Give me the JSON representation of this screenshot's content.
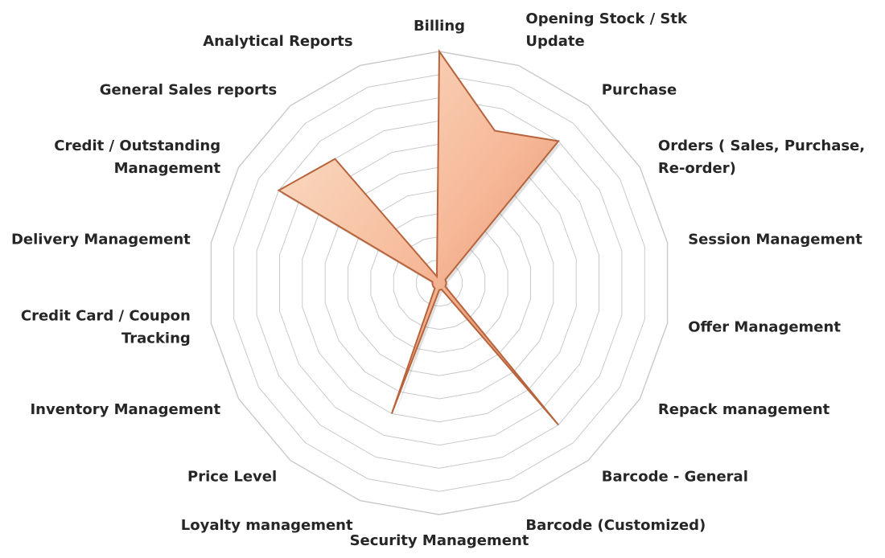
{
  "chart_data": {
    "type": "radar",
    "title": "",
    "categories": [
      "Billing",
      "Opening Stock / Stk Update",
      "Purchase",
      "Orders ( Sales, Purchase, Re-order)",
      "Session Management",
      "Offer Management",
      "Repack management",
      "Barcode  - General",
      "Barcode (Customized)",
      "Security Management",
      "Loyalty management",
      "Price Level",
      "Inventory Management",
      "Credit Card / Coupon Tracking",
      "Delivery Management",
      "Credit / Outstanding Management",
      "General Sales reports",
      "Analytical  Reports"
    ],
    "label_lines": [
      [
        "Billing"
      ],
      [
        "Opening Stock / Stk",
        "Update"
      ],
      [
        "Purchase"
      ],
      [
        "Orders ( Sales, Purchase,",
        "Re-order)"
      ],
      [
        "Session Management"
      ],
      [
        "Offer Management"
      ],
      [
        "Repack management"
      ],
      [
        "Barcode  - General"
      ],
      [
        "Barcode (Customized)"
      ],
      [
        "Security Management"
      ],
      [
        "Loyalty management"
      ],
      [
        "Price Level"
      ],
      [
        "Inventory Management"
      ],
      [
        "Credit Card / Coupon",
        "Tracking"
      ],
      [
        "Delivery Management"
      ],
      [
        "Credit / Outstanding",
        "Management"
      ],
      [
        "General Sales reports"
      ],
      [
        "Analytical  Reports"
      ]
    ],
    "series": [
      {
        "values": [
          10,
          7,
          8,
          0.3,
          0.3,
          0.3,
          0.3,
          8,
          0.3,
          0.3,
          6,
          0.3,
          0.3,
          0.3,
          0.3,
          8,
          7,
          0.3
        ]
      }
    ],
    "rlim": [
      0,
      10
    ],
    "grid_rings": 10,
    "grid": true,
    "legend": "none",
    "colors": {
      "fill_light": "#fbe3cc",
      "fill_mid": "#f6b898",
      "fill_dark": "#d9875f",
      "edge": "#b7643c",
      "grid": "#c9c9c9",
      "label": "#262626"
    }
  }
}
